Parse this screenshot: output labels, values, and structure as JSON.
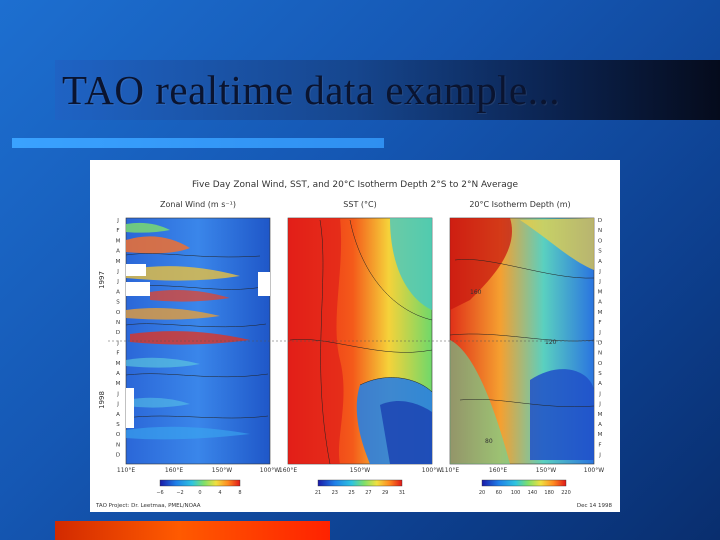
{
  "slide": {
    "title": "TAO realtime data example..."
  },
  "figure": {
    "main_title": "Five Day Zonal Wind, SST, and 20°C Isotherm Depth   2°S to 2°N Average",
    "panels": [
      {
        "title": "Zonal Wind (m s⁻¹)",
        "x_ticks": [
          "110°E",
          "160°E",
          "150°W",
          "100°W"
        ],
        "colorbar_ticks": [
          "−6",
          "−2",
          "0",
          "4",
          "8"
        ]
      },
      {
        "title": "SST (°C)",
        "x_ticks": [
          "160°E",
          "150°W",
          "100°W"
        ],
        "colorbar_ticks": [
          "21",
          "23",
          "25",
          "27",
          "29",
          "31"
        ]
      },
      {
        "title": "20°C Isotherm Depth (m)",
        "x_ticks": [
          "110°E",
          "160°E",
          "150°W",
          "100°W"
        ],
        "colorbar_ticks": [
          "20",
          "60",
          "100",
          "140",
          "180",
          "220"
        ],
        "contour_labels": [
          "160",
          "120",
          "80"
        ]
      }
    ],
    "year_labels": [
      "1997",
      "1998"
    ],
    "month_letters_left": [
      "J",
      "F",
      "M",
      "A",
      "M",
      "J",
      "J",
      "A",
      "S",
      "O",
      "N",
      "D",
      "J",
      "F",
      "M",
      "A",
      "M",
      "J",
      "J",
      "A",
      "S",
      "O",
      "N",
      "D"
    ],
    "month_letters_right": [
      "D",
      "N",
      "O",
      "S",
      "A",
      "J",
      "J",
      "M",
      "A",
      "M",
      "F",
      "J",
      "D",
      "N",
      "O",
      "S",
      "A",
      "J",
      "J",
      "M",
      "A",
      "M",
      "F",
      "J"
    ],
    "footer_left": "TAO Project: Dr. Leetmaa, PMEL/NOAA",
    "footer_right": "Dec 14 1998"
  },
  "colors": {
    "background": "#1557b3",
    "title_band_end": "#050b1c",
    "accent_top": "#3aa2ff",
    "accent_bottom": "#ff5a00"
  }
}
